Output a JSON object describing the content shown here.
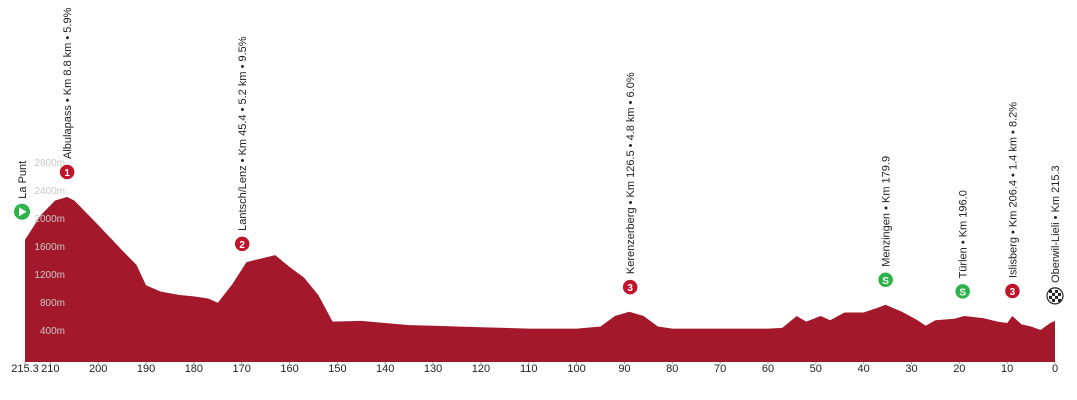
{
  "chart_data": {
    "type": "area",
    "color": "#a3192b",
    "xlim": [
      215.3,
      0
    ],
    "xticks": [
      215.3,
      210,
      200,
      190,
      180,
      170,
      160,
      150,
      140,
      130,
      120,
      110,
      100,
      90,
      80,
      70,
      60,
      50,
      40,
      30,
      20,
      10,
      0
    ],
    "ylim": [
      0,
      2800
    ],
    "yticks": [
      {
        "value": 400,
        "label": "400m"
      },
      {
        "value": 800,
        "label": "800m"
      },
      {
        "value": 1200,
        "label": "1200m"
      },
      {
        "value": 1600,
        "label": "1600m"
      },
      {
        "value": 2000,
        "label": "2000m"
      },
      {
        "value": 2400,
        "label": "2400m"
      },
      {
        "value": 2800,
        "label": "2800m"
      }
    ],
    "x": [
      215.3,
      212,
      209,
      206.5,
      205,
      200,
      195,
      192,
      190,
      187,
      183,
      180,
      177,
      175,
      172,
      169,
      166,
      163,
      160,
      157,
      154,
      151,
      145,
      140,
      135,
      130,
      120,
      110,
      100,
      95,
      92,
      89,
      86,
      83,
      80,
      70,
      60,
      57,
      54,
      52,
      49,
      47,
      44,
      40,
      37,
      35.4,
      32,
      29,
      27,
      25,
      21,
      19,
      15,
      12,
      10,
      8.9,
      7,
      5,
      3,
      1,
      0
    ],
    "values": [
      1690,
      2040,
      2250,
      2300,
      2250,
      1900,
      1540,
      1330,
      1040,
      950,
      900,
      880,
      850,
      790,
      1050,
      1370,
      1420,
      1470,
      1300,
      1150,
      900,
      520,
      530,
      500,
      470,
      460,
      440,
      420,
      420,
      450,
      600,
      660,
      600,
      450,
      420,
      420,
      420,
      430,
      600,
      520,
      600,
      540,
      650,
      650,
      720,
      760,
      660,
      550,
      460,
      540,
      560,
      600,
      570,
      520,
      500,
      600,
      480,
      450,
      400,
      500,
      530
    ],
    "annotations": [
      {
        "x": 215.3,
        "text": "La Punt",
        "icon": "start"
      },
      {
        "x": 206.5,
        "text": "Albulapass • Km 8.8 km • 5.9%",
        "icon": "climb",
        "marker": "1"
      },
      {
        "x": 169.9,
        "text": "Lantsch/Lenz • Km 45.4 • 5.2 km • 9.5%",
        "icon": "climb",
        "marker": "2"
      },
      {
        "x": 88.8,
        "text": "Kerenzerberg • Km 126.5 • 4.8 km • 6.0%",
        "icon": "climb",
        "marker": "3"
      },
      {
        "x": 35.4,
        "text": "Menzingen • Km 179.9",
        "icon": "sprint",
        "marker": "S"
      },
      {
        "x": 19.3,
        "text": "Türlen • Km 196.0",
        "icon": "sprint",
        "marker": "S"
      },
      {
        "x": 8.9,
        "text": "Islisberg • Km 206.4 • 1.4 km • 8.2%",
        "icon": "climb",
        "marker": "3"
      },
      {
        "x": 0,
        "text": "Oberwil-Lieli • Km 215.3",
        "icon": "finish"
      }
    ]
  }
}
